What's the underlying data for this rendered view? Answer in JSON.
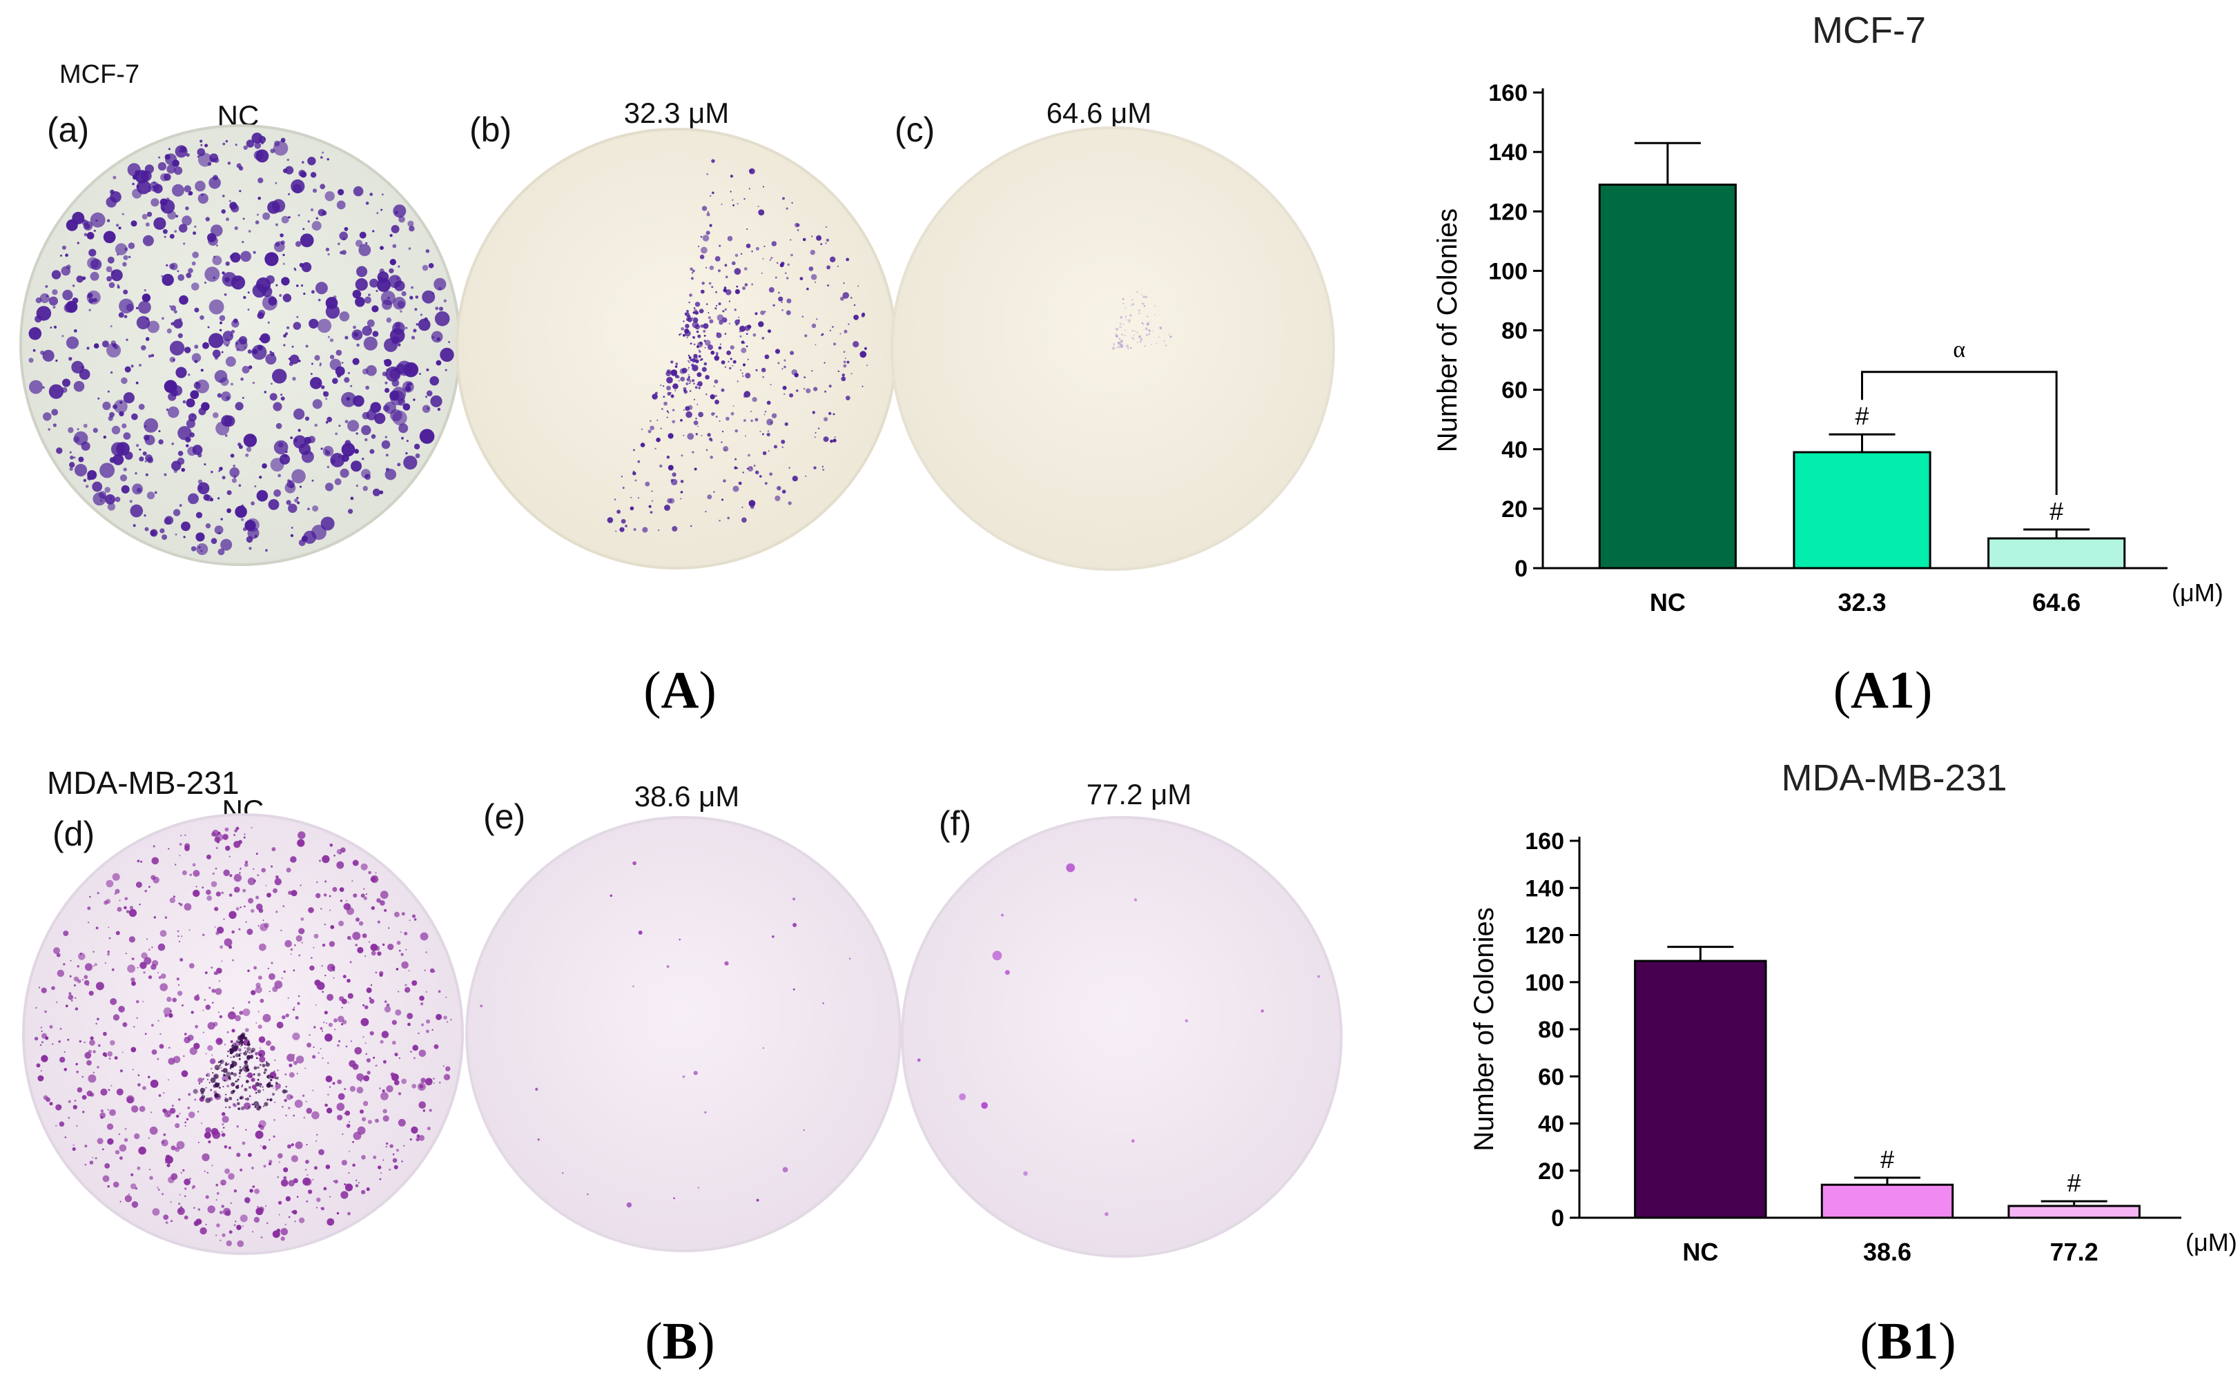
{
  "colors": {
    "mcf7_bars": [
      "#006b40",
      "#00edac",
      "#b2f5e1"
    ],
    "mda_bars": [
      "#470050",
      "#f08af2",
      "#f5b5f5"
    ],
    "stain_dark": "#4b1d99",
    "stain_pink": "#8a2ea0"
  },
  "panel_A": {
    "cell_line": "MCF-7",
    "caption_letter": "A",
    "dishes": [
      {
        "letter": "(a)",
        "label": "NC"
      },
      {
        "letter": "(b)",
        "label": "32.3 μM"
      },
      {
        "letter": "(c)",
        "label": "64.6 μM"
      }
    ]
  },
  "panel_B": {
    "cell_line": "MDA-MB-231",
    "caption_letter": "B",
    "dishes": [
      {
        "letter": "(d)",
        "label": "NC"
      },
      {
        "letter": "(e)",
        "label": "38.6 μM"
      },
      {
        "letter": "(f)",
        "label": "77.2 μM"
      }
    ]
  },
  "chart_data": [
    {
      "type": "bar",
      "title": "MCF-7",
      "caption": "A1",
      "categories": [
        "NC",
        "32.3",
        "64.6"
      ],
      "values": [
        129,
        39,
        10
      ],
      "errors": [
        14,
        6,
        3
      ],
      "annotations": [
        "",
        "#",
        "#"
      ],
      "comparison": {
        "from": 1,
        "to": 2,
        "symbol": "α"
      },
      "ylabel": "Number of Colonies",
      "unit": "(μM)",
      "ylim": [
        0,
        160
      ],
      "yticks": [
        0,
        20,
        40,
        60,
        80,
        100,
        120,
        140,
        160
      ]
    },
    {
      "type": "bar",
      "title": "MDA-MB-231",
      "caption": "B1",
      "categories": [
        "NC",
        "38.6",
        "77.2"
      ],
      "values": [
        109,
        14,
        5
      ],
      "errors": [
        6,
        3,
        2
      ],
      "annotations": [
        "",
        "#",
        "#"
      ],
      "ylabel": "Number of Colonies",
      "unit": "(μM)",
      "ylim": [
        0,
        160
      ],
      "yticks": [
        0,
        20,
        40,
        60,
        80,
        100,
        120,
        140,
        160
      ]
    }
  ]
}
